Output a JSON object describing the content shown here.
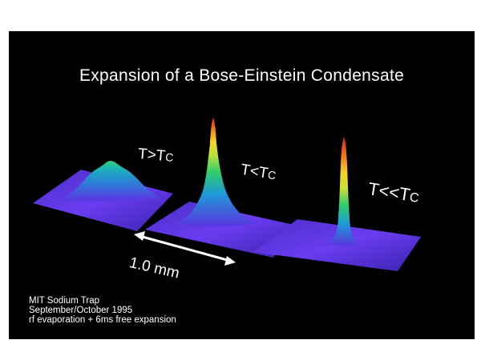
{
  "title": "Expansion of a Bose-Einstein Condensate",
  "panels": [
    {
      "label_main": "T>T",
      "label_sub": "C"
    },
    {
      "label_main": "T<T",
      "label_sub": "C"
    },
    {
      "label_main": "T<<T",
      "label_sub": "C"
    }
  ],
  "scale_bar": {
    "label": "1.0 mm"
  },
  "caption": {
    "line1": "MIT Sodium Trap",
    "line2": "September/October 1995",
    "line3": "rf evaporation + 6ms free expansion"
  },
  "colors": {
    "background": "#000000",
    "surface_low": "#5a2fd6",
    "surface_mid": "#1fa0d0",
    "surface_high": "#f3e23a",
    "peak": "#e8231b",
    "text": "#ffffff"
  }
}
